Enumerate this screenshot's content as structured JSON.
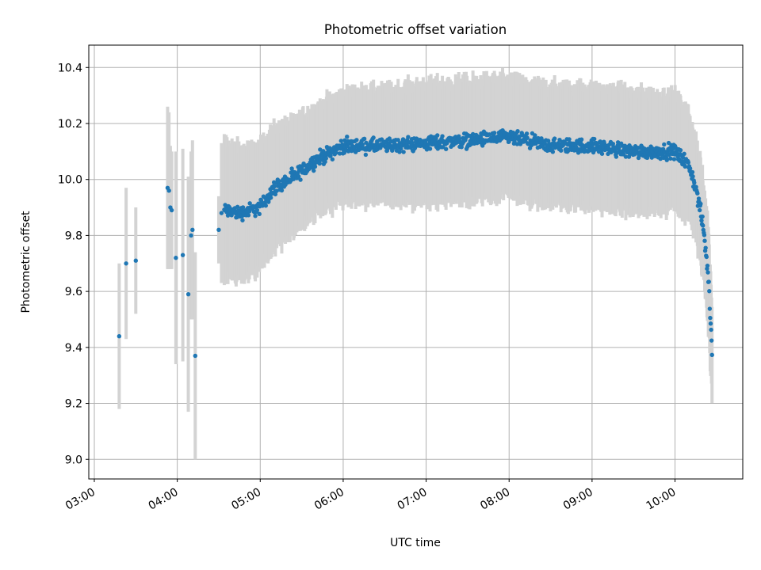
{
  "chart_data": {
    "type": "scatter",
    "title": "Photometric offset variation",
    "xlabel": "UTC time",
    "ylabel": "Photometric offset",
    "x_tick_labels": [
      "03:00",
      "04:00",
      "05:00",
      "06:00",
      "07:00",
      "08:00",
      "09:00",
      "10:00"
    ],
    "y_tick_labels": [
      "9.0",
      "9.2",
      "9.4",
      "9.6",
      "9.8",
      "10.0",
      "10.2",
      "10.4"
    ],
    "x_range": [
      "02:56",
      "10:49"
    ],
    "ylim": [
      8.93,
      10.48
    ],
    "grid": true,
    "colors": {
      "point": "#1f77b4",
      "errorbar": "#d3d3d3",
      "grid": "#b0b0b0"
    },
    "points": [
      {
        "x": "03:18",
        "y": 9.44,
        "err": 0.26
      },
      {
        "x": "03:23",
        "y": 9.7,
        "err": 0.27
      },
      {
        "x": "03:30",
        "y": 9.71,
        "err": 0.19
      },
      {
        "x": "03:53",
        "y": 9.97,
        "err": 0.29
      },
      {
        "x": "03:54",
        "y": 9.96,
        "err": 0.28
      },
      {
        "x": "03:55",
        "y": 9.9,
        "err": 0.22
      },
      {
        "x": "03:56",
        "y": 9.89,
        "err": 0.21
      },
      {
        "x": "03:59",
        "y": 9.72,
        "err": 0.38
      },
      {
        "x": "04:04",
        "y": 9.73,
        "err": 0.38
      },
      {
        "x": "04:08",
        "y": 9.59,
        "err": 0.42
      },
      {
        "x": "04:10",
        "y": 9.8,
        "err": 0.3
      },
      {
        "x": "04:11",
        "y": 9.82,
        "err": 0.32
      },
      {
        "x": "04:13",
        "y": 9.37,
        "err": 0.37
      },
      {
        "x": "04:30",
        "y": 9.82,
        "err": 0.12
      },
      {
        "x": "04:32",
        "y": 9.88,
        "err": 0.25
      }
    ],
    "dense_segment": {
      "x_start": "04:34",
      "x_end": "10:27",
      "profile": [
        {
          "x": "04:34",
          "y": 9.89,
          "err": 0.25
        },
        {
          "x": "04:45",
          "y": 9.88,
          "err": 0.23
        },
        {
          "x": "05:00",
          "y": 9.9,
          "err": 0.22
        },
        {
          "x": "05:10",
          "y": 9.97,
          "err": 0.21
        },
        {
          "x": "05:25",
          "y": 10.01,
          "err": 0.2
        },
        {
          "x": "05:40",
          "y": 10.07,
          "err": 0.19
        },
        {
          "x": "06:00",
          "y": 10.12,
          "err": 0.19
        },
        {
          "x": "06:30",
          "y": 10.12,
          "err": 0.2
        },
        {
          "x": "07:00",
          "y": 10.13,
          "err": 0.21
        },
        {
          "x": "07:30",
          "y": 10.14,
          "err": 0.21
        },
        {
          "x": "08:00",
          "y": 10.15,
          "err": 0.21
        },
        {
          "x": "08:30",
          "y": 10.12,
          "err": 0.21
        },
        {
          "x": "09:00",
          "y": 10.12,
          "err": 0.21
        },
        {
          "x": "09:30",
          "y": 10.1,
          "err": 0.21
        },
        {
          "x": "10:00",
          "y": 10.1,
          "err": 0.2
        },
        {
          "x": "10:10",
          "y": 10.05,
          "err": 0.19
        },
        {
          "x": "10:15",
          "y": 9.97,
          "err": 0.18
        },
        {
          "x": "10:19",
          "y": 9.87,
          "err": 0.18
        },
        {
          "x": "10:21",
          "y": 9.8,
          "err": 0.17
        },
        {
          "x": "10:24",
          "y": 9.66,
          "err": 0.18
        },
        {
          "x": "10:27",
          "y": 9.37,
          "err": 0.17
        }
      ]
    }
  }
}
